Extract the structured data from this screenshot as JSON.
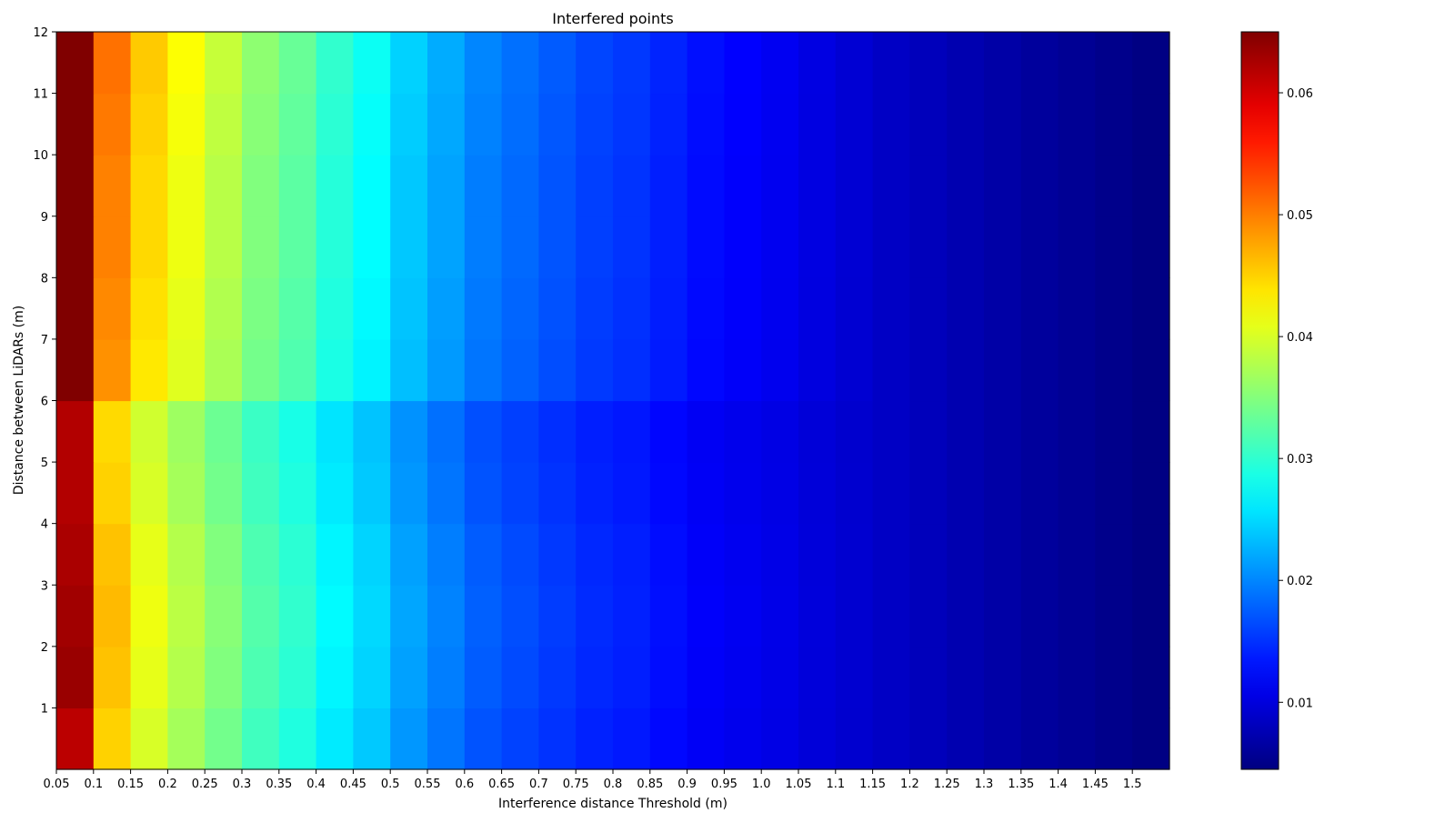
{
  "chart_data": {
    "type": "heatmap",
    "title": "Interfered points",
    "xlabel": "Interference distance Threshold (m)",
    "ylabel": "Distance between LiDARs (m)",
    "x_ticks": [
      "0.05",
      "0.1",
      "0.15",
      "0.2",
      "0.25",
      "0.3",
      "0.35",
      "0.4",
      "0.45",
      "0.5",
      "0.55",
      "0.6",
      "0.65",
      "0.7",
      "0.75",
      "0.8",
      "0.85",
      "0.9",
      "0.95",
      "1.0",
      "1.05",
      "1.1",
      "1.15",
      "1.2",
      "1.25",
      "1.3",
      "1.35",
      "1.4",
      "1.45",
      "1.5"
    ],
    "x_values": [
      0.05,
      0.1,
      0.15,
      0.2,
      0.25,
      0.3,
      0.35,
      0.4,
      0.45,
      0.5,
      0.55,
      0.6,
      0.65,
      0.7,
      0.75,
      0.8,
      0.85,
      0.9,
      0.95,
      1.0,
      1.05,
      1.1,
      1.15,
      1.2,
      1.25,
      1.3,
      1.35,
      1.4,
      1.45,
      1.5
    ],
    "xlim": [
      0.05,
      1.55
    ],
    "y_ticks": [
      "1",
      "2",
      "3",
      "4",
      "5",
      "6",
      "7",
      "8",
      "9",
      "10",
      "11",
      "12"
    ],
    "y_values": [
      0,
      1,
      2,
      3,
      4,
      5,
      6,
      7,
      8,
      9,
      10,
      11
    ],
    "ylim": [
      0,
      12
    ],
    "colorbar": {
      "ticks": [
        "0.01",
        "0.02",
        "0.03",
        "0.04",
        "0.05",
        "0.06"
      ],
      "tick_values": [
        0.01,
        0.02,
        0.03,
        0.04,
        0.05,
        0.06
      ],
      "range": [
        0.0045,
        0.065
      ],
      "colormap": "jet"
    },
    "base_profile": [
      0.062,
      0.045,
      0.04,
      0.037,
      0.034,
      0.031,
      0.029,
      0.026,
      0.024,
      0.021,
      0.019,
      0.017,
      0.016,
      0.015,
      0.014,
      0.0135,
      0.0125,
      0.0115,
      0.011,
      0.0105,
      0.0098,
      0.0092,
      0.0086,
      0.008,
      0.0074,
      0.0068,
      0.0062,
      0.0057,
      0.0052,
      0.0047
    ],
    "row_offsets": [
      0.0,
      0.001,
      0.0015,
      0.001,
      0.0,
      -0.0005,
      0.004,
      0.0045,
      0.005,
      0.005,
      0.0055,
      0.006
    ],
    "first_column": [
      0.0615,
      0.0635,
      0.063,
      0.0625,
      0.062,
      0.062,
      0.065,
      0.065,
      0.065,
      0.065,
      0.065,
      0.065
    ]
  }
}
